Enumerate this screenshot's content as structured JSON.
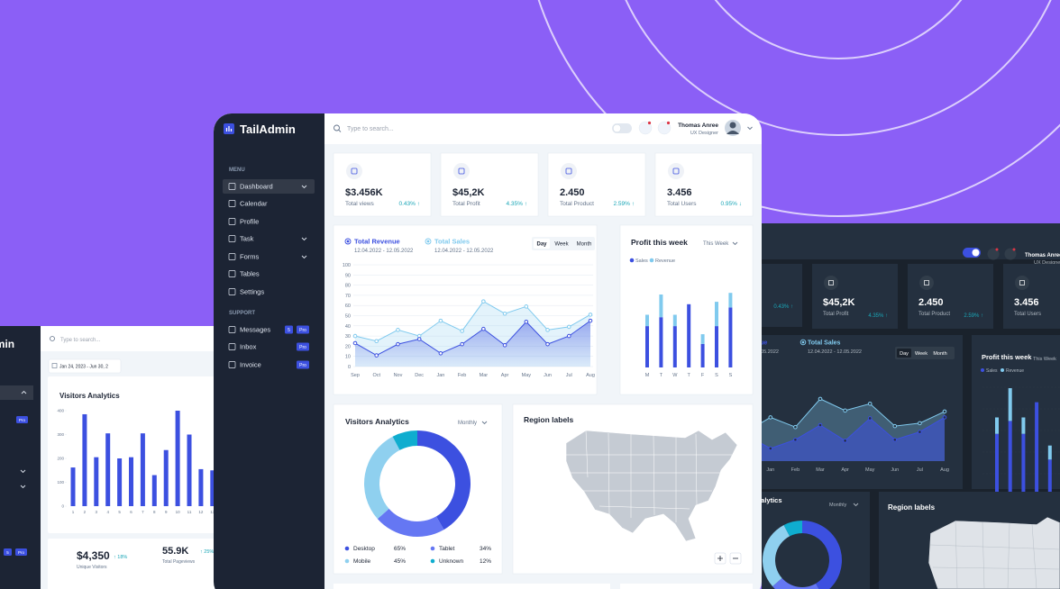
{
  "brand": "TailAdmin",
  "search_placeholder": "Type to search...",
  "user": {
    "name": "Thomas Anree",
    "role": "UX Designer"
  },
  "menu": {
    "heading": "MENU",
    "items": [
      "Dashboard",
      "Calendar",
      "Profile",
      "Task",
      "Forms",
      "Tables",
      "Settings"
    ]
  },
  "support": {
    "heading": "SUPPORT",
    "items": [
      {
        "label": "Messages",
        "badges": [
          "5",
          "Pro"
        ]
      },
      {
        "label": "Inbox",
        "badges": [
          "Pro"
        ]
      },
      {
        "label": "Invoice",
        "badges": [
          "Pro"
        ]
      }
    ]
  },
  "stats": [
    {
      "value": "$3.456K",
      "label": "Total views",
      "change": "0.43% ↑"
    },
    {
      "value": "$45,2K",
      "label": "Total Profit",
      "change": "4.35% ↑"
    },
    {
      "value": "2.450",
      "label": "Total Product",
      "change": "2.59% ↑"
    },
    {
      "value": "3.456",
      "label": "Total Users",
      "change": "0.95% ↓"
    }
  ],
  "chart_data": [
    {
      "type": "line",
      "series": [
        {
          "name": "Total Revenue",
          "date_range": "12.04.2022 - 12.05.2022",
          "color": "#3c50e0",
          "values": [
            23,
            11,
            22,
            27,
            13,
            22,
            37,
            21,
            44,
            22,
            30,
            45
          ]
        },
        {
          "name": "Total Sales",
          "date_range": "12.04.2022 - 12.05.2022",
          "color": "#80caee",
          "values": [
            30,
            25,
            36,
            30,
            45,
            35,
            64,
            52,
            59,
            36,
            39,
            51
          ]
        }
      ],
      "categories": [
        "Sep",
        "Oct",
        "Nov",
        "Dec",
        "Jan",
        "Feb",
        "Mar",
        "Apr",
        "May",
        "Jun",
        "Jul",
        "Aug"
      ],
      "ylim": [
        0,
        100
      ],
      "yticks": [
        0,
        10,
        20,
        30,
        40,
        50,
        60,
        70,
        80,
        90,
        100
      ],
      "grid": true,
      "tabs": [
        "Day",
        "Week",
        "Month"
      ],
      "active_tab": "Day"
    },
    {
      "type": "bar",
      "stacked": true,
      "title": "Profit this week",
      "period": "This Week",
      "categories": [
        "M",
        "T",
        "W",
        "T",
        "F",
        "S",
        "S"
      ],
      "ylim": [
        0,
        100
      ],
      "series": [
        {
          "name": "Sales",
          "color": "#3c50e0",
          "values": [
            51,
            62,
            51,
            78,
            29,
            51,
            74
          ]
        },
        {
          "name": "Revenue",
          "color": "#80caee",
          "values": [
            14,
            28,
            14,
            0,
            12,
            30,
            18
          ]
        }
      ]
    },
    {
      "type": "pie",
      "donut": true,
      "title": "Visitors Analytics",
      "period": "Monthly",
      "categories": [
        "Desktop",
        "Tablet",
        "Mobile",
        "Unknown"
      ],
      "values": [
        65,
        34,
        45,
        12
      ],
      "value_labels": [
        "65%",
        "34%",
        "45%",
        "12%"
      ],
      "colors": [
        "#3c50e0",
        "#6577f3",
        "#8fd0ef",
        "#0fadcf"
      ]
    },
    {
      "type": "bar",
      "title": "Visitors Analytics",
      "categories": [
        "1",
        "2",
        "3",
        "4",
        "5",
        "6",
        "7",
        "8",
        "9",
        "10",
        "11",
        "12",
        "13"
      ],
      "values": [
        162,
        385,
        205,
        305,
        200,
        205,
        305,
        130,
        235,
        400,
        300,
        155,
        150
      ],
      "color": "#3c50e0",
      "ylim": [
        0,
        400
      ],
      "yticks": [
        0,
        100,
        200,
        300,
        400
      ]
    }
  ],
  "region_map": {
    "title": "Region labels"
  },
  "left_window": {
    "date_range": "Jan 24, 2023 - Jun 30, 2",
    "stats": [
      {
        "value": "$4,350",
        "change": "↑ 18%",
        "label": "Unique Visitors"
      },
      {
        "value": "55.9K",
        "change": "↑ 25%",
        "label": "Total Pageviews"
      }
    ]
  }
}
